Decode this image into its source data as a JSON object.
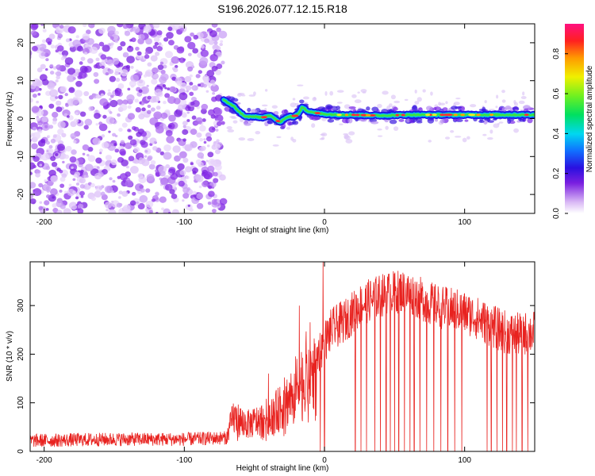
{
  "figure_title": "S196.2026.077.12.15.R18",
  "chart_data": [
    {
      "type": "heatmap",
      "xlabel": "Height of straight line (km)",
      "ylabel": "Frequency (Hz)",
      "xlim": [
        -210,
        150
      ],
      "ylim": [
        -25,
        25
      ],
      "xticks": [
        -200,
        -100,
        0,
        100
      ],
      "yticks": [
        -20,
        -10,
        0,
        10,
        20
      ],
      "noise_region_x": [
        -210,
        -72
      ],
      "signal_track": {
        "x": [
          -72,
          -68,
          -64,
          -60,
          -56,
          -50,
          -44,
          -38,
          -32,
          -26,
          -22,
          -18,
          -16,
          -12,
          -6,
          0,
          10,
          20,
          40,
          60,
          80,
          100,
          120,
          140,
          150
        ],
        "y": [
          5,
          4,
          3,
          1.5,
          0.5,
          0.5,
          0.3,
          0.8,
          -1,
          0.5,
          0.5,
          1.5,
          3,
          2,
          1.5,
          1.2,
          1,
          1,
          0.8,
          1,
          1,
          1,
          1,
          1,
          1
        ]
      },
      "colorbar": {
        "label": "Normalized spectral amplitude",
        "range": [
          0,
          0.95
        ],
        "ticks": [
          "0.0",
          "0.2",
          "0.4",
          "0.6",
          "0.8"
        ]
      }
    },
    {
      "type": "line",
      "series": [
        {
          "name": "SNR",
          "color": "#e8221f"
        }
      ],
      "xlabel": "Height of straight line (km)",
      "ylabel": "SNR (10 * v/v)",
      "xlim": [
        -210,
        150
      ],
      "ylim": [
        0,
        390
      ],
      "xticks": [
        -200,
        -100,
        0,
        100
      ],
      "yticks": [
        0,
        100,
        200,
        300
      ],
      "envelope": {
        "x": [
          -210,
          -150,
          -100,
          -70,
          -65,
          -55,
          -45,
          -35,
          -25,
          -15,
          -5,
          5,
          15,
          25,
          35,
          45,
          55,
          65,
          75,
          85,
          95,
          105,
          115,
          125,
          135,
          150
        ],
        "y": [
          22,
          25,
          25,
          28,
          70,
          55,
          65,
          80,
          110,
          150,
          200,
          250,
          270,
          300,
          315,
          325,
          330,
          320,
          305,
          295,
          290,
          280,
          265,
          250,
          240,
          245
        ]
      },
      "dropouts_x": [
        -3,
        0,
        22,
        26,
        30,
        36,
        40,
        44,
        47,
        50,
        53,
        57,
        61,
        64,
        68,
        73,
        78,
        83,
        88,
        93,
        98,
        116,
        119,
        123,
        127,
        130,
        134,
        137,
        141,
        145
      ]
    }
  ]
}
